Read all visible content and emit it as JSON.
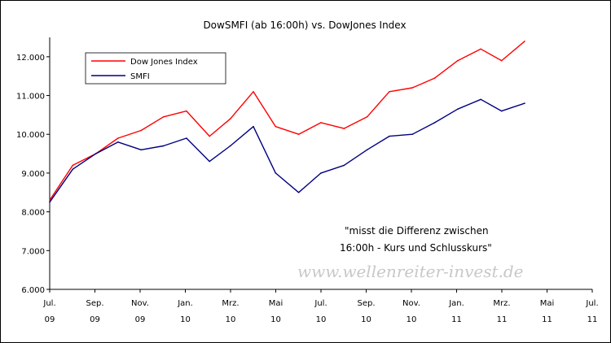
{
  "chart_data": {
    "type": "line",
    "title": "DowSMFI (ab 16:00h) vs. DowJones Index",
    "xlabel": "",
    "ylabel": "",
    "ylim": [
      6000,
      12500
    ],
    "y_ticks": [
      {
        "value": 6000,
        "label": "6.000"
      },
      {
        "value": 7000,
        "label": "7.000"
      },
      {
        "value": 8000,
        "label": "8.000"
      },
      {
        "value": 9000,
        "label": "9.000"
      },
      {
        "value": 10000,
        "label": "10.000"
      },
      {
        "value": 11000,
        "label": "11.000"
      },
      {
        "value": 12000,
        "label": "12.000"
      }
    ],
    "x_ticks": [
      {
        "month": "Jul.",
        "year": "09"
      },
      {
        "month": "Sep.",
        "year": "09"
      },
      {
        "month": "Nov.",
        "year": "09"
      },
      {
        "month": "Jan.",
        "year": "10"
      },
      {
        "month": "Mrz.",
        "year": "10"
      },
      {
        "month": "Mai",
        "year": "10"
      },
      {
        "month": "Jul.",
        "year": "10"
      },
      {
        "month": "Sep.",
        "year": "10"
      },
      {
        "month": "Nov.",
        "year": "10"
      },
      {
        "month": "Jan.",
        "year": "11"
      },
      {
        "month": "Mrz.",
        "year": "11"
      },
      {
        "month": "Mai",
        "year": "11"
      },
      {
        "month": "Jul.",
        "year": "11"
      }
    ],
    "x": [
      "2009-07-01",
      "2009-08-01",
      "2009-09-01",
      "2009-10-01",
      "2009-11-01",
      "2009-12-01",
      "2010-01-01",
      "2010-02-01",
      "2010-03-01",
      "2010-04-01",
      "2010-05-01",
      "2010-06-01",
      "2010-07-01",
      "2010-08-01",
      "2010-09-01",
      "2010-10-01",
      "2010-11-01",
      "2010-12-01",
      "2011-01-01",
      "2011-02-01",
      "2011-03-01",
      "2011-04-01"
    ],
    "series": [
      {
        "name": "Dow Jones Index",
        "color": "#ff0000",
        "values": [
          8300,
          9200,
          9500,
          9900,
          10100,
          10450,
          10600,
          9950,
          10400,
          11100,
          10200,
          10000,
          10300,
          10150,
          10450,
          11100,
          11200,
          11450,
          11900,
          12200,
          11900,
          12400
        ]
      },
      {
        "name": "SMFI",
        "color": "#000080",
        "values": [
          8250,
          9100,
          9500,
          9800,
          9600,
          9700,
          9900,
          9300,
          9700,
          10200,
          9000,
          8500,
          9000,
          9200,
          9600,
          9950,
          10000,
          10300,
          10650,
          10900,
          10600,
          10800
        ]
      }
    ],
    "legend": {
      "position": "top-left"
    },
    "grid": false,
    "annotation": {
      "line1": "\"misst die Differenz zwischen",
      "line2": "16:00h - Kurs und Schlusskurs\""
    },
    "watermark": "www.wellenreiter-invest.de"
  }
}
